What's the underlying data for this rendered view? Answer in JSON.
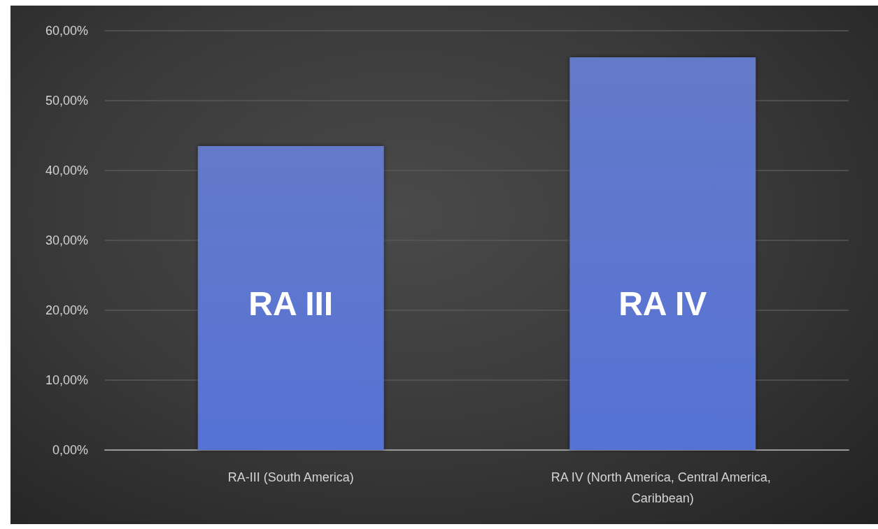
{
  "chart_data": {
    "type": "bar",
    "categories": [
      "RA-III (South America)",
      "RA IV (North America, Central America, Caribbean)"
    ],
    "values": [
      43.5,
      56.2
    ],
    "color": "#4f68c2",
    "ylim": [
      0,
      60
    ],
    "yticks": [
      {
        "value": 0,
        "label": "0,00%"
      },
      {
        "value": 10,
        "label": "10,00%"
      },
      {
        "value": 20,
        "label": "20,00%"
      },
      {
        "value": 30,
        "label": "30,00%"
      },
      {
        "value": 40,
        "label": "40,00%"
      },
      {
        "value": 50,
        "label": "50,00%"
      },
      {
        "value": 60,
        "label": "60,00%"
      }
    ],
    "grid": "y",
    "annotations": [
      "RA III",
      "RA IV"
    ]
  }
}
